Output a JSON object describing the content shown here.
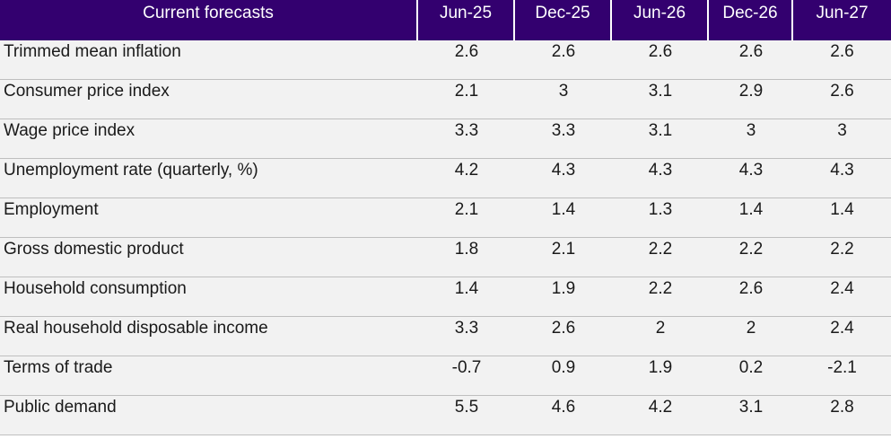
{
  "table": {
    "header": {
      "label": "Current forecasts",
      "columns": [
        "Jun-25",
        "Dec-25",
        "Jun-26",
        "Dec-26",
        "Jun-27"
      ]
    },
    "rows": [
      {
        "label": "Trimmed mean inflation",
        "values": [
          "2.6",
          "2.6",
          "2.6",
          "2.6",
          "2.6"
        ]
      },
      {
        "label": "Consumer price index",
        "values": [
          "2.1",
          "3",
          "3.1",
          "2.9",
          "2.6"
        ]
      },
      {
        "label": "Wage price index",
        "values": [
          "3.3",
          "3.3",
          "3.1",
          "3",
          "3"
        ]
      },
      {
        "label": "Unemployment rate (quarterly, %)",
        "values": [
          "4.2",
          "4.3",
          "4.3",
          "4.3",
          "4.3"
        ]
      },
      {
        "label": "Employment",
        "values": [
          "2.1",
          "1.4",
          "1.3",
          "1.4",
          "1.4"
        ]
      },
      {
        "label": "Gross domestic product",
        "values": [
          "1.8",
          "2.1",
          "2.2",
          "2.2",
          "2.2"
        ]
      },
      {
        "label": "Household consumption",
        "values": [
          "1.4",
          "1.9",
          "2.2",
          "2.6",
          "2.4"
        ]
      },
      {
        "label": "Real household disposable income",
        "values": [
          "3.3",
          "2.6",
          "2",
          "2",
          "2.4"
        ]
      },
      {
        "label": "Terms of trade",
        "values": [
          "-0.7",
          "0.9",
          "1.9",
          "0.2",
          "-2.1"
        ]
      },
      {
        "label": "Public demand",
        "values": [
          "5.5",
          "4.6",
          "4.2",
          "3.1",
          "2.8"
        ]
      }
    ]
  },
  "colors": {
    "header_background": "#33006f",
    "header_text": "#ffffff",
    "row_background": "#f2f2f2",
    "row_divider": "#bfbfbf"
  }
}
